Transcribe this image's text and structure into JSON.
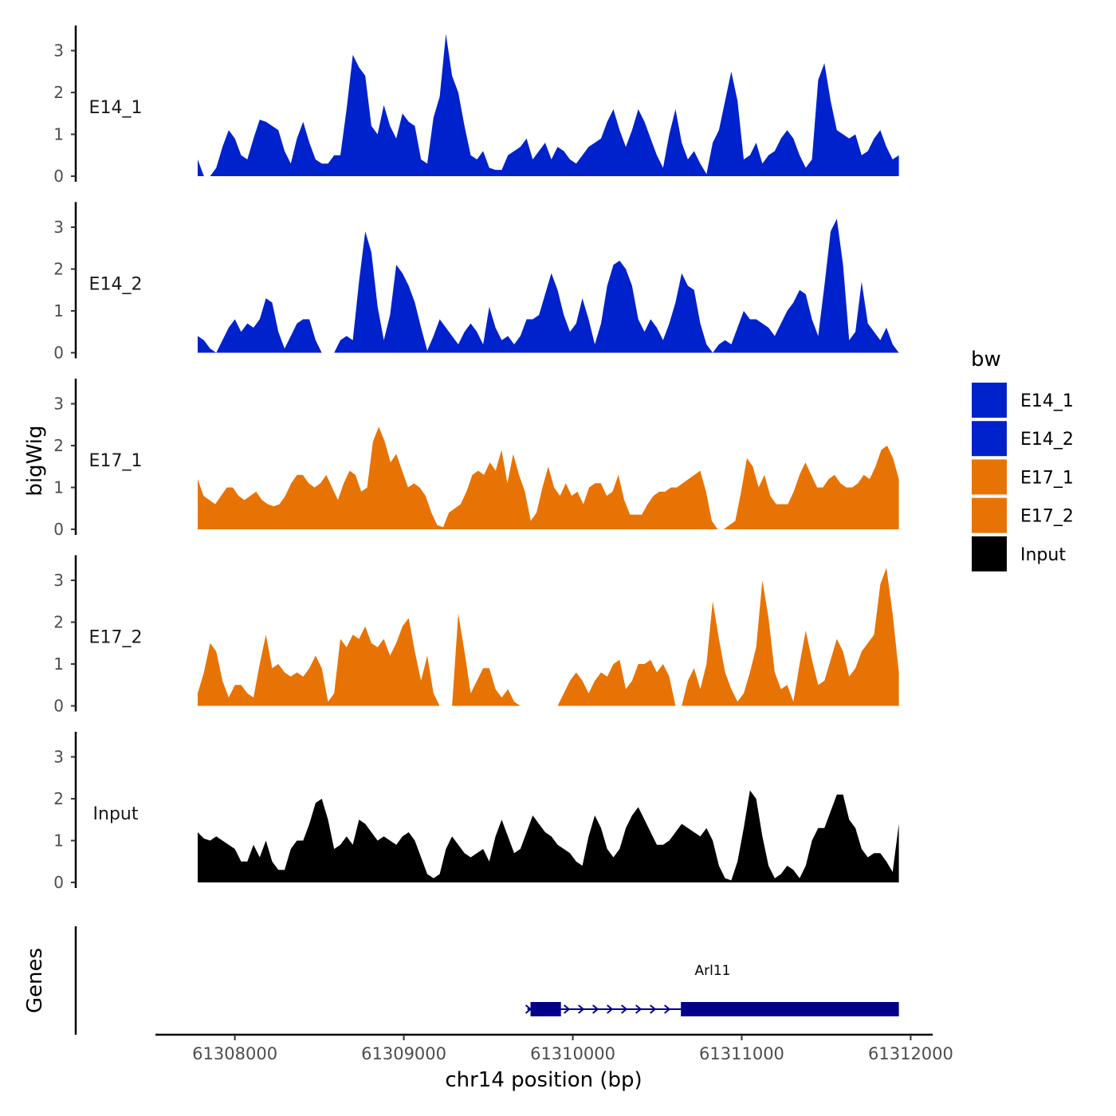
{
  "chart_data": {
    "type": "area",
    "ylabel": "bigWig",
    "xlabel": "chr14 position (bp)",
    "x_range": [
      61307780,
      61311930
    ],
    "xlim": [
      61307530,
      61312130
    ],
    "ylim": [
      0,
      3.6
    ],
    "y_ticks": [
      0,
      1,
      2,
      3
    ],
    "y_tick_labels": [
      "0",
      "1",
      "2",
      "3"
    ],
    "x_ticks": [
      61308000,
      61309000,
      61310000,
      61311000,
      61312000
    ],
    "x_tick_labels": [
      "61308000",
      "61309000",
      "61310000",
      "61311000",
      "61312000"
    ],
    "legend": {
      "title": "bw",
      "entries": [
        {
          "name": "E14_1",
          "color": "#0022cc"
        },
        {
          "name": "E14_2",
          "color": "#0022cc"
        },
        {
          "name": "E17_1",
          "color": "#e87305"
        },
        {
          "name": "E17_2",
          "color": "#e87305"
        },
        {
          "name": "Input",
          "color": "#000000"
        }
      ]
    },
    "series": [
      {
        "name": "E14_1",
        "color": "#0022cc",
        "values": [
          0.4,
          0,
          0,
          0.2,
          0.7,
          1.1,
          0.9,
          0.5,
          0.4,
          0.9,
          1.35,
          1.3,
          1.2,
          1.1,
          0.6,
          0.3,
          0.9,
          1.3,
          0.8,
          0.4,
          0.3,
          0.3,
          0.5,
          0.5,
          1.6,
          2.9,
          2.6,
          2.4,
          1.2,
          1.0,
          1.7,
          1.2,
          0.9,
          1.5,
          1.3,
          1.2,
          0.4,
          0.3,
          1.4,
          1.9,
          3.4,
          2.4,
          2.0,
          1.2,
          0.5,
          0.4,
          0.6,
          0.2,
          0.15,
          0.15,
          0.5,
          0.6,
          0.7,
          0.9,
          0.4,
          0.6,
          0.8,
          0.4,
          0.7,
          0.6,
          0.4,
          0.3,
          0.5,
          0.7,
          0.8,
          0.9,
          1.3,
          1.6,
          1.1,
          0.7,
          1.1,
          1.6,
          1.3,
          0.9,
          0.5,
          0.2,
          1.0,
          1.6,
          0.8,
          0.4,
          0.6,
          0.3,
          0.05,
          0.8,
          1.1,
          1.8,
          2.5,
          1.8,
          0.4,
          0.5,
          0.8,
          0.3,
          0.5,
          0.6,
          0.9,
          1.1,
          0.9,
          0.5,
          0.2,
          0.4,
          2.3,
          2.7,
          1.8,
          1.1,
          1.0,
          0.9,
          1.0,
          0.5,
          0.6,
          0.9,
          1.1,
          0.7,
          0.4,
          0.5
        ]
      },
      {
        "name": "E14_2",
        "color": "#0022cc",
        "values": [
          0.4,
          0.3,
          0.1,
          0,
          0.3,
          0.6,
          0.8,
          0.5,
          0.7,
          0.6,
          0.8,
          1.3,
          1.2,
          0.5,
          0.1,
          0.4,
          0.7,
          0.8,
          0.8,
          0.3,
          0,
          0,
          0,
          0.3,
          0.4,
          0.3,
          1.7,
          2.9,
          2.4,
          1.1,
          0.3,
          0.9,
          2.1,
          1.9,
          1.6,
          1.2,
          0.6,
          0.05,
          0.4,
          0.8,
          0.6,
          0.4,
          0.2,
          0.5,
          0.7,
          0.5,
          0.2,
          1.1,
          0.6,
          0.3,
          0.4,
          0.2,
          0.4,
          0.8,
          0.8,
          0.9,
          1.4,
          1.9,
          1.5,
          0.9,
          0.5,
          0.7,
          1.3,
          0.8,
          0.2,
          0.7,
          1.6,
          2.1,
          2.2,
          2.0,
          1.6,
          0.8,
          0.5,
          0.8,
          0.6,
          0.3,
          0.7,
          1.2,
          1.9,
          1.6,
          1.5,
          0.7,
          0.2,
          0,
          0.2,
          0.3,
          0.2,
          0.6,
          1.0,
          0.8,
          0.8,
          0.7,
          0.6,
          0.4,
          0.7,
          1.0,
          1.2,
          1.5,
          1.4,
          0.8,
          0.4,
          1.6,
          2.9,
          3.2,
          2.1,
          0.3,
          0.5,
          1.7,
          0.7,
          0.5,
          0.3,
          0.6,
          0.2,
          0
        ]
      },
      {
        "name": "E17_1",
        "color": "#e87305",
        "values": [
          1.2,
          0.8,
          0.7,
          0.6,
          0.8,
          1.0,
          1.0,
          0.8,
          0.7,
          0.8,
          0.9,
          0.7,
          0.6,
          0.55,
          0.6,
          0.8,
          1.1,
          1.3,
          1.3,
          1.1,
          1.0,
          1.1,
          1.3,
          1.0,
          0.7,
          1.1,
          1.4,
          1.3,
          0.9,
          1.0,
          2.1,
          2.45,
          2.1,
          1.6,
          1.8,
          1.4,
          1.0,
          1.1,
          1.0,
          0.8,
          0.4,
          0.1,
          0.05,
          0.4,
          0.5,
          0.6,
          0.9,
          1.3,
          1.4,
          1.3,
          1.6,
          1.4,
          1.9,
          1.1,
          1.8,
          1.3,
          0.9,
          0.2,
          0.4,
          1.0,
          1.5,
          1.0,
          0.8,
          1.1,
          0.8,
          0.9,
          0.6,
          1.0,
          1.1,
          1.1,
          0.8,
          0.9,
          1.3,
          0.7,
          0.35,
          0.35,
          0.35,
          0.6,
          0.8,
          0.9,
          0.9,
          1.0,
          1.0,
          1.1,
          1.2,
          1.3,
          1.4,
          0.9,
          0.2,
          0,
          0,
          0.1,
          0.2,
          0.9,
          1.7,
          1.5,
          1.0,
          1.3,
          0.8,
          0.6,
          0.6,
          0.6,
          0.9,
          1.3,
          1.6,
          1.3,
          1.0,
          1.0,
          1.2,
          1.3,
          1.1,
          1.0,
          1.0,
          1.1,
          1.3,
          1.2,
          1.5,
          1.9,
          2.0,
          1.7,
          1.2
        ]
      },
      {
        "name": "E17_2",
        "color": "#e87305",
        "values": [
          0.3,
          0.8,
          1.5,
          1.3,
          0.6,
          0.2,
          0.5,
          0.5,
          0.3,
          0.2,
          1.0,
          1.7,
          0.9,
          1.0,
          0.8,
          0.7,
          0.8,
          0.7,
          0.9,
          1.2,
          0.9,
          0.1,
          0.3,
          1.6,
          1.4,
          1.7,
          1.6,
          1.9,
          1.5,
          1.4,
          1.6,
          1.2,
          1.5,
          1.9,
          2.1,
          1.3,
          0.6,
          1.2,
          0.3,
          0,
          0,
          0,
          2.2,
          1.3,
          0.3,
          0.6,
          0.9,
          0.9,
          0.4,
          0.2,
          0.4,
          0.1,
          0,
          0,
          0,
          0,
          0,
          0,
          0,
          0.3,
          0.6,
          0.8,
          0.6,
          0.3,
          0.6,
          0.8,
          0.7,
          1.0,
          1.1,
          0.4,
          0.6,
          1.0,
          1.0,
          1.1,
          0.8,
          1.0,
          0.7,
          0,
          0,
          0.6,
          0.9,
          0.4,
          1.0,
          2.5,
          1.6,
          0.8,
          0.4,
          0.1,
          0.3,
          0.8,
          1.4,
          3.0,
          2.1,
          0.8,
          0.4,
          0.5,
          0.1,
          1.0,
          1.8,
          1.1,
          0.5,
          0.6,
          1.1,
          1.6,
          1.3,
          0.7,
          0.9,
          1.3,
          1.5,
          1.7,
          2.9,
          3.3,
          2.2,
          0.8
        ]
      },
      {
        "name": "Input",
        "color": "#000000",
        "values": [
          1.2,
          1.05,
          1.0,
          1.1,
          1.0,
          0.9,
          0.8,
          0.5,
          0.5,
          0.9,
          0.6,
          1.0,
          0.5,
          0.3,
          0.3,
          0.8,
          1.0,
          1.0,
          1.4,
          1.9,
          2.0,
          1.5,
          0.8,
          0.9,
          1.1,
          0.9,
          1.5,
          1.4,
          1.2,
          1.0,
          1.1,
          1.0,
          0.9,
          1.1,
          1.2,
          1.0,
          0.6,
          0.2,
          0.1,
          0.2,
          0.8,
          1.1,
          0.9,
          0.7,
          0.6,
          0.7,
          0.8,
          0.5,
          1.1,
          1.5,
          1.1,
          0.7,
          0.8,
          1.2,
          1.6,
          1.4,
          1.2,
          1.1,
          0.9,
          0.8,
          0.7,
          0.5,
          0.4,
          1.1,
          1.6,
          1.3,
          0.8,
          0.6,
          0.8,
          1.3,
          1.6,
          1.8,
          1.5,
          1.2,
          0.9,
          0.9,
          1.0,
          1.2,
          1.4,
          1.3,
          1.2,
          1.1,
          1.3,
          1.0,
          0.4,
          0.1,
          0.05,
          0.5,
          1.3,
          2.2,
          2.0,
          1.1,
          0.4,
          0.1,
          0.2,
          0.4,
          0.3,
          0.1,
          0.4,
          1.0,
          1.3,
          1.3,
          1.7,
          2.1,
          2.1,
          1.5,
          1.3,
          0.8,
          0.6,
          0.7,
          0.7,
          0.5,
          0.25,
          1.4
        ]
      }
    ],
    "gene_track": {
      "label": "Genes",
      "gene_name": "Arl11",
      "strand": "+",
      "tx_start": 61309750,
      "tx_end": 61311930,
      "exons": [
        [
          61309750,
          61309930
        ],
        [
          61310640,
          61311930
        ]
      ]
    }
  }
}
